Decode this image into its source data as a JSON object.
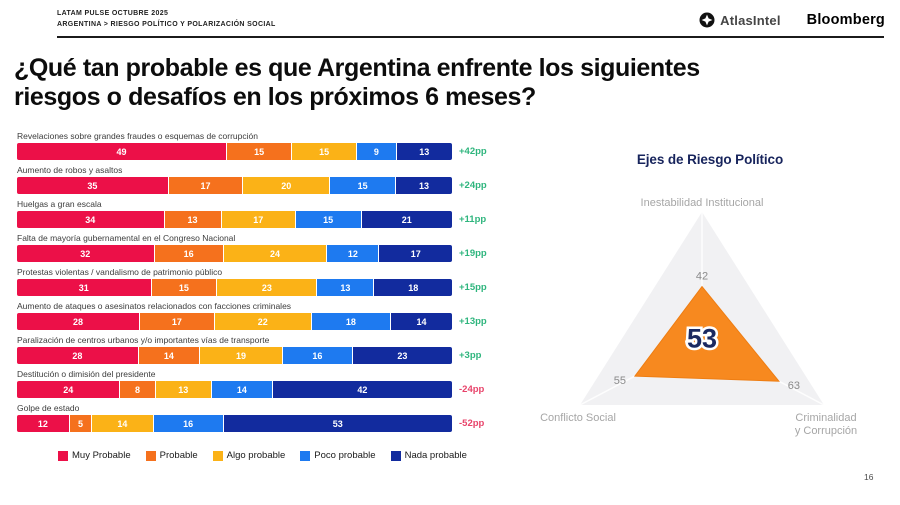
{
  "header": {
    "line1": "LATAM PULSE OCTUBRE 2025",
    "line2": "ARGENTINA > RIESGO POLÍTICO Y POLARIZACIÓN SOCIAL",
    "brand_atlas": "AtlasIntel",
    "brand_bloomberg": "Bloomberg"
  },
  "title": {
    "line1": "¿Qué tan probable es que Argentina enfrente los siguientes",
    "line2": "riesgos o desafíos en los próximos 6 meses?"
  },
  "palette": {
    "series": [
      "#ec1048",
      "#f5711d",
      "#fbb217",
      "#1e7af0",
      "#122b9e"
    ],
    "net_positive": "#2eb57d",
    "net_negative": "#e8436a",
    "radar_fill": "#f7891f",
    "radar_stroke": "#ee7d12",
    "radar_bg": "#f1f1f3",
    "navy_text": "#1b2960",
    "gray_label": "#a6a6a6",
    "gray_value": "#8b8b8b"
  },
  "legend": [
    "Muy Probable",
    "Probable",
    "Algo probable",
    "Poco probable",
    "Nada probable"
  ],
  "chart_data": [
    {
      "type": "bar",
      "stacked": true,
      "orientation": "horizontal",
      "series_labels": [
        "Muy Probable",
        "Probable",
        "Algo probable",
        "Poco probable",
        "Nada probable"
      ],
      "rows": [
        {
          "label": "Revelaciones sobre grandes fraudes o esquemas de corrupción",
          "values": [
            49,
            15,
            15,
            9,
            13
          ],
          "net": "+42pp"
        },
        {
          "label": "Aumento de robos y asaltos",
          "values": [
            35,
            17,
            20,
            15,
            13
          ],
          "net": "+24pp"
        },
        {
          "label": "Huelgas a gran escala",
          "values": [
            34,
            13,
            17,
            15,
            21
          ],
          "net": "+11pp"
        },
        {
          "label": "Falta de mayoría gubernamental en el Congreso Nacional",
          "values": [
            32,
            16,
            24,
            12,
            17
          ],
          "net": "+19pp"
        },
        {
          "label": "Protestas violentas / vandalismo de patrimonio público",
          "values": [
            31,
            15,
            23,
            13,
            18
          ],
          "net": "+15pp"
        },
        {
          "label": "Aumento de ataques o asesinatos relacionados con facciones criminales",
          "values": [
            28,
            17,
            22,
            18,
            14
          ],
          "net": "+13pp"
        },
        {
          "label": "Paralización de centros urbanos y/o importantes vías de transporte",
          "values": [
            28,
            14,
            19,
            16,
            23
          ],
          "net": "+3pp"
        },
        {
          "label": "Destitución o dimisión del presidente",
          "values": [
            24,
            8,
            13,
            14,
            42
          ],
          "net": "-24pp"
        },
        {
          "label": "Golpe de estado",
          "values": [
            12,
            5,
            14,
            16,
            53
          ],
          "net": "-52pp"
        }
      ]
    },
    {
      "type": "radar",
      "title": "Ejes de Riesgo Político",
      "max": 100,
      "center_value": "53",
      "axes": [
        {
          "label": "Inestabilidad Institucional",
          "value": 42
        },
        {
          "label": "Criminalidad y Corrupción",
          "value": 63
        },
        {
          "label": "Conflicto Social",
          "value": 55
        }
      ]
    }
  ],
  "page_number": "16"
}
